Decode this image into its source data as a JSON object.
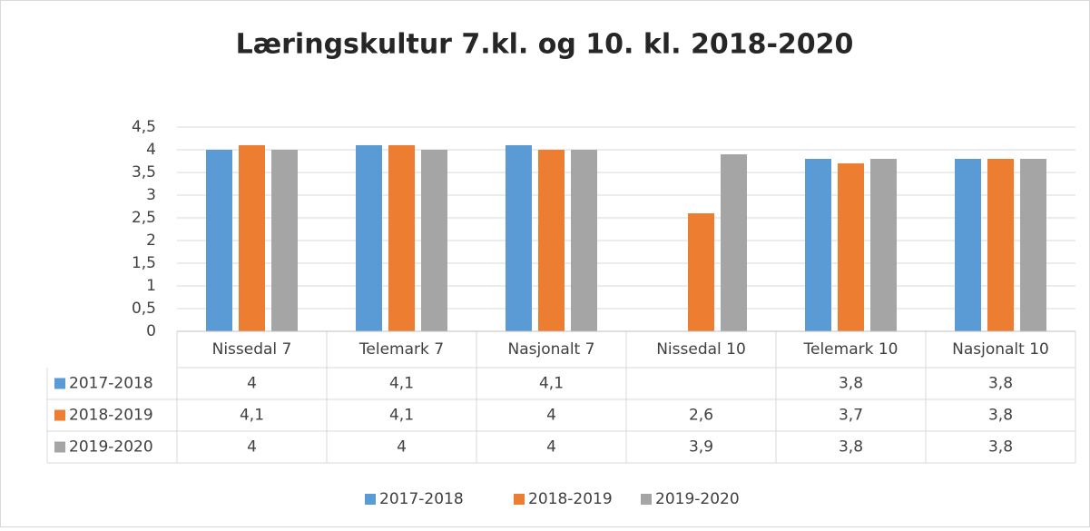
{
  "chart_data": {
    "type": "bar",
    "title": "Læringskultur 7.kl. og 10. kl. 2018-2020",
    "categories": [
      "Nissedal 7",
      "Telemark 7",
      "Nasjonalt 7",
      "Nissedal 10",
      "Telemark 10",
      "Nasjonalt 10"
    ],
    "series": [
      {
        "name": "2017-2018",
        "color": "#5b9bd5",
        "values": [
          4,
          4.1,
          4.1,
          null,
          3.8,
          3.8
        ],
        "value_labels": [
          "4",
          "4,1",
          "4,1",
          null,
          "3,8",
          "3,8"
        ]
      },
      {
        "name": "2018-2019",
        "color": "#ed7d31",
        "values": [
          4.1,
          4.1,
          4,
          2.6,
          3.7,
          3.8
        ],
        "value_labels": [
          "4,1",
          "4,1",
          "4",
          "2,6",
          "3,7",
          "3,8"
        ]
      },
      {
        "name": "2019-2020",
        "color": "#a5a5a5",
        "values": [
          4,
          4,
          4,
          3.9,
          3.8,
          3.8
        ],
        "value_labels": [
          "4",
          "4",
          "4",
          "3,9",
          "3,8",
          "3,8"
        ]
      }
    ],
    "ylim": [
      0,
      4.5
    ],
    "yticks": [
      0,
      {
        "value": 0.5,
        "label": "0,5"
      },
      1,
      {
        "value": 1.5,
        "label": "1,5"
      },
      2,
      {
        "value": 2.5,
        "label": "2,5"
      },
      3,
      {
        "value": 3.5,
        "label": "3,5"
      },
      4,
      {
        "value": 4.5,
        "label": "4,5"
      }
    ],
    "grid": true,
    "legend": "bottom",
    "data_table": true
  }
}
